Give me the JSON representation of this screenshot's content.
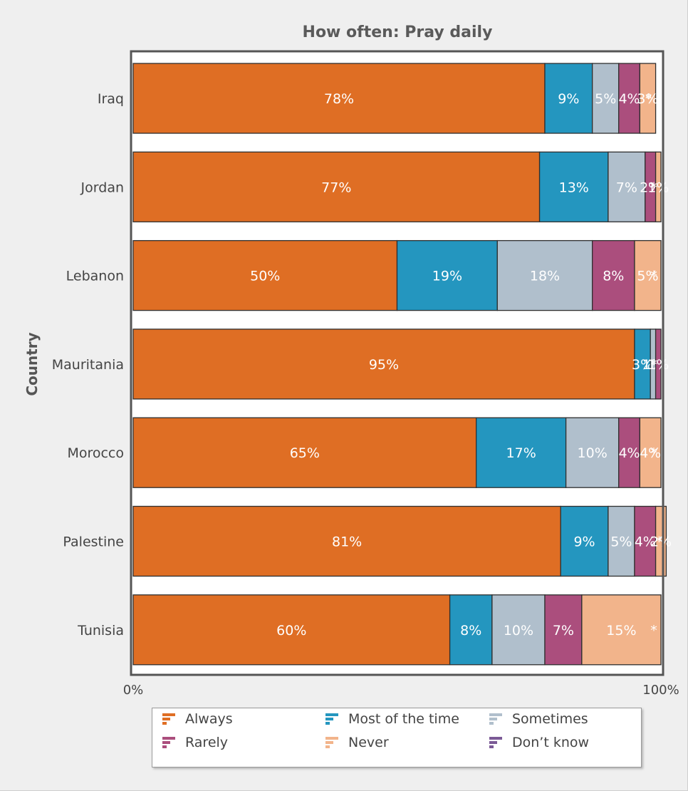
{
  "chart_data": {
    "type": "bar",
    "orientation": "horizontal",
    "stacked": "percent",
    "title": "How often: Pray daily",
    "ylabel": "Country",
    "xlim": [
      0,
      100
    ],
    "x_ticks": [
      "0%",
      "100%"
    ],
    "categories": [
      "Iraq",
      "Jordan",
      "Lebanon",
      "Mauritania",
      "Morocco",
      "Palestine",
      "Tunisia"
    ],
    "series": [
      {
        "name": "Always",
        "color": "#df6e24",
        "values": [
          78,
          77,
          50,
          95,
          65,
          81,
          60
        ],
        "labels": [
          "78%",
          "77%",
          "50%",
          "95%",
          "65%",
          "81%",
          "60%"
        ]
      },
      {
        "name": "Most of the time",
        "color": "#2496bf",
        "values": [
          9,
          13,
          19,
          3,
          17,
          9,
          8
        ],
        "labels": [
          "9%",
          "13%",
          "19%",
          "3%",
          "17%",
          "9%",
          "8%"
        ]
      },
      {
        "name": "Sometimes",
        "color": "#b0bfcc",
        "values": [
          5,
          7,
          18,
          1,
          10,
          5,
          10
        ],
        "labels": [
          "5%",
          "7%",
          "18%",
          "1%",
          "10%",
          "5%",
          "10%"
        ]
      },
      {
        "name": "Rarely",
        "color": "#ab4e7d",
        "values": [
          4,
          2,
          8,
          1,
          4,
          4,
          7
        ],
        "labels": [
          "4%",
          "2%",
          "8%",
          "1%",
          "4%",
          "4%",
          "7%"
        ]
      },
      {
        "name": "Never",
        "color": "#f2b48b",
        "values": [
          3,
          1,
          5,
          0,
          4,
          2,
          15
        ],
        "labels": [
          "3%",
          "1%",
          "5%",
          "",
          "4%",
          "2%",
          "15%"
        ]
      },
      {
        "name": "Don’t know",
        "color": "#7b5a96",
        "values": [
          0,
          0,
          0,
          0,
          0,
          0,
          0
        ],
        "labels": [
          "*",
          "*",
          "*",
          "*",
          "*",
          "*",
          "*"
        ]
      }
    ],
    "legend_position": "bottom",
    "grid": false
  }
}
